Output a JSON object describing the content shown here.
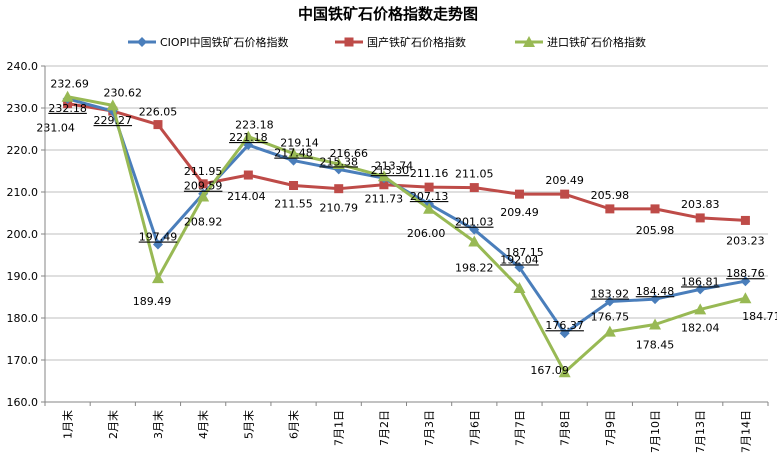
{
  "chart_data": {
    "type": "line",
    "title": "中国铁矿石价格指数走势图",
    "categories": [
      "1月末",
      "2月末",
      "3月末",
      "4月末",
      "5月末",
      "6月末",
      "7月1日",
      "7月2日",
      "7月3日",
      "7月6日",
      "7月7日",
      "7月8日",
      "7月9日",
      "7月10日",
      "7月13日",
      "7月14日"
    ],
    "ylim": [
      160,
      240
    ],
    "yticks": [
      "160.0",
      "170.0",
      "180.0",
      "190.0",
      "200.0",
      "210.0",
      "220.0",
      "230.0",
      "240.0"
    ],
    "grid": true,
    "legend_position": "top",
    "series": [
      {
        "name": "CIOPI中国铁矿石价格指数",
        "color": "#4a7ebb",
        "marker": "diamond",
        "values": [
          232.18,
          229.27,
          197.49,
          209.59,
          221.18,
          217.48,
          215.38,
          213.3,
          207.13,
          201.03,
          192.04,
          176.37,
          183.92,
          184.48,
          186.81,
          188.76
        ],
        "labels": [
          "232.18",
          "229.27",
          "197.49",
          "209.59",
          "221.18",
          "217.48",
          "215.38",
          "213.30",
          "207.13",
          "201.03",
          "192.04",
          "176.37",
          "183.92",
          "184.48",
          "186.81",
          "188.76"
        ]
      },
      {
        "name": "国产铁矿石价格指数",
        "color": "#be4b48",
        "marker": "square",
        "values": [
          231.04,
          229.27,
          226.05,
          211.95,
          214.04,
          211.55,
          210.79,
          211.73,
          211.16,
          211.05,
          209.49,
          209.49,
          205.98,
          205.98,
          203.83,
          203.23
        ],
        "labels": [
          "231.04",
          "",
          "226.05",
          "211.95",
          "214.04",
          "211.55",
          "210.79",
          "211.73",
          "211.16",
          "211.05",
          "209.49",
          "209.49",
          "205.98",
          "205.98",
          "203.83",
          "203.23"
        ]
      },
      {
        "name": "进口铁矿石价格指数",
        "color": "#98b954",
        "marker": "triangle",
        "values": [
          232.69,
          230.62,
          189.49,
          208.92,
          223.18,
          219.14,
          216.66,
          213.74,
          206.0,
          198.22,
          187.15,
          167.09,
          176.75,
          178.45,
          182.04,
          184.71
        ],
        "labels": [
          "232.69",
          "230.62",
          "189.49",
          "208.92",
          "223.18",
          "219.14",
          "216.66",
          "213.74",
          "206.00",
          "198.22",
          "187.15",
          "167.09",
          "176.75",
          "178.45",
          "182.04",
          "184.71"
        ]
      }
    ]
  }
}
